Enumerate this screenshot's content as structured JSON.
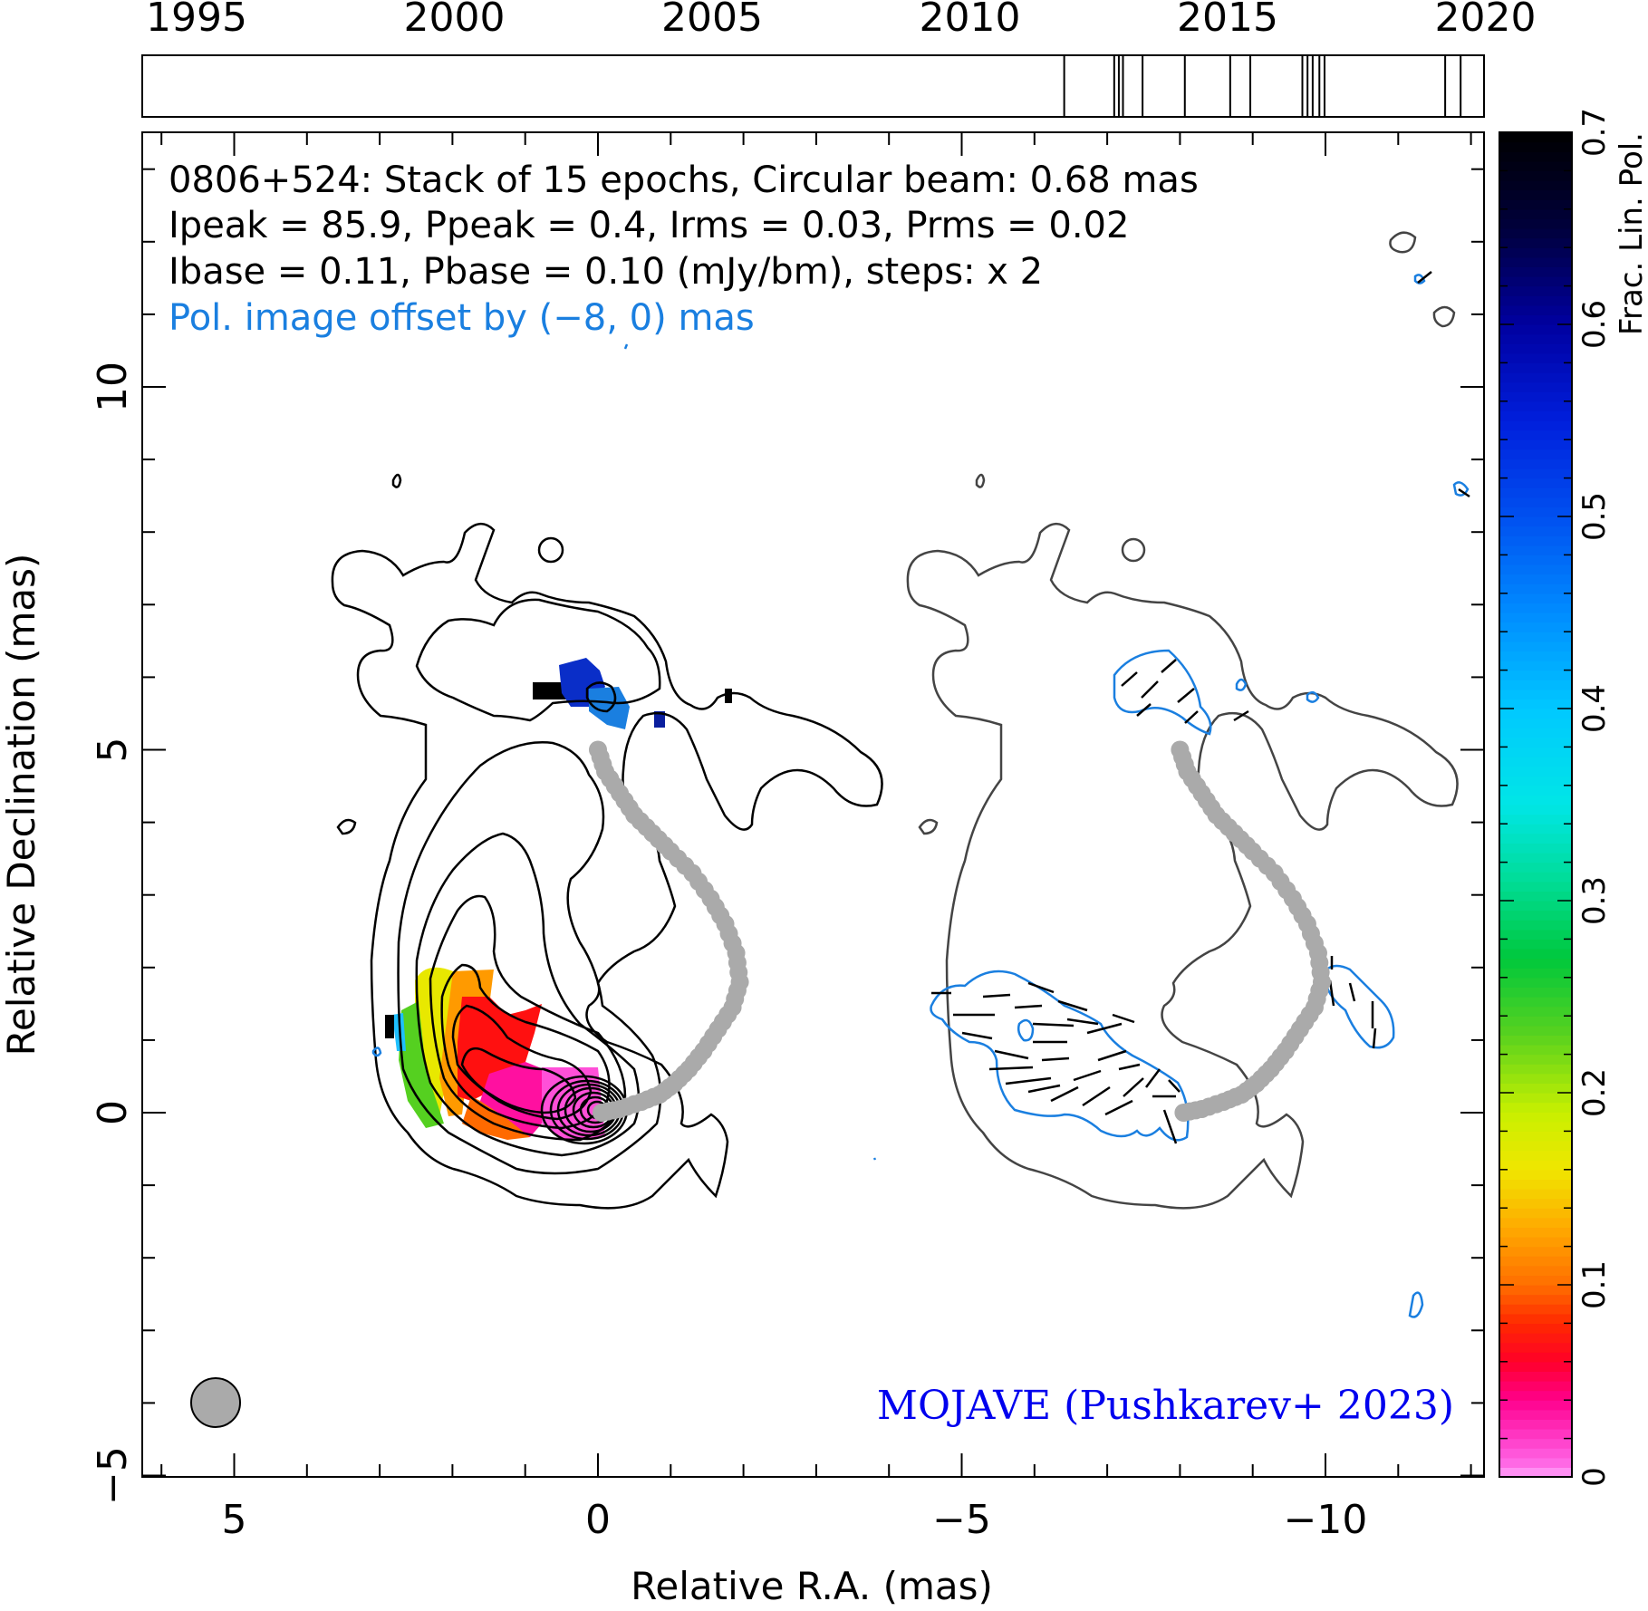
{
  "timeline": {
    "year_ticks": [
      "1995",
      "2000",
      "2005",
      "2010",
      "2015",
      "2020"
    ],
    "epochs": [
      2011.83,
      2012.8,
      2012.89,
      2012.97,
      2013.35,
      2014.17,
      2015.05,
      2015.44,
      2016.45,
      2016.55,
      2016.65,
      2016.78,
      2016.88,
      2019.22,
      2019.52
    ]
  },
  "annotation": {
    "line1": "0806+524: Stack of 15 epochs, Circular beam: 0.68 mas",
    "line2": "Ipeak = 85.9, Ppeak = 0.4, Irms = 0.03, Prms = 0.02",
    "line3": "Ibase = 0.11, Pbase = 0.10 (mJy/bm), steps: x 2",
    "line4": "Pol. image offset by (−8, 0) mas"
  },
  "credit": "MOJAVE (Pushkarev+ 2023)",
  "colors": {
    "total_intensity_contour": "#000000",
    "pol_panel_contour": "#444444",
    "pol_intensity_contour": "#1a7fe0",
    "ridge_line": "#aaaaaa",
    "credit_text": "#0000ee"
  },
  "chart_data": {
    "type": "heatmap",
    "xlabel": "Relative R.A. (mas)",
    "ylabel": "Relative Declination (mas)",
    "xlim": [
      6.3,
      -12.2
    ],
    "ylim": [
      -5.0,
      13.5
    ],
    "x_ticks": [
      5,
      0,
      -5,
      -10
    ],
    "x_tick_labels": [
      "5",
      "0",
      "−5",
      "−10"
    ],
    "y_ticks": [
      -5,
      0,
      5,
      10
    ],
    "y_tick_labels": [
      "−5",
      "0",
      "5",
      "10"
    ],
    "colorbar": {
      "label": "Frac. Lin. Pol.",
      "range": [
        0,
        0.7
      ],
      "ticks": [
        "0",
        "0.1",
        "0.2",
        "0.3",
        "0.4",
        "0.5",
        "0.6",
        "0.7"
      ]
    },
    "beam_fwhm_mas": 0.68,
    "stack_epochs": 15,
    "ipeak": 85.9,
    "ppeak": 0.4,
    "irms": 0.03,
    "prms": 0.02,
    "ibase": 0.11,
    "pbase": 0.1,
    "contour_step_factor": 2,
    "pol_offset_mas": [
      -8,
      0
    ],
    "ridge_line": {
      "x": [
        0.0,
        -0.1,
        -0.3,
        -0.5,
        -0.75,
        -1.0,
        -1.3,
        -1.55,
        -1.75,
        -1.9,
        -1.95,
        -1.85,
        -1.65,
        -1.45,
        -1.25,
        -1.05,
        -0.85,
        -0.6,
        -0.3,
        -0.05
      ],
      "y": [
        5.0,
        4.7,
        4.4,
        4.1,
        3.85,
        3.6,
        3.3,
        2.95,
        2.6,
        2.2,
        1.8,
        1.45,
        1.15,
        0.85,
        0.6,
        0.4,
        0.25,
        0.15,
        0.05,
        0.0
      ]
    }
  }
}
